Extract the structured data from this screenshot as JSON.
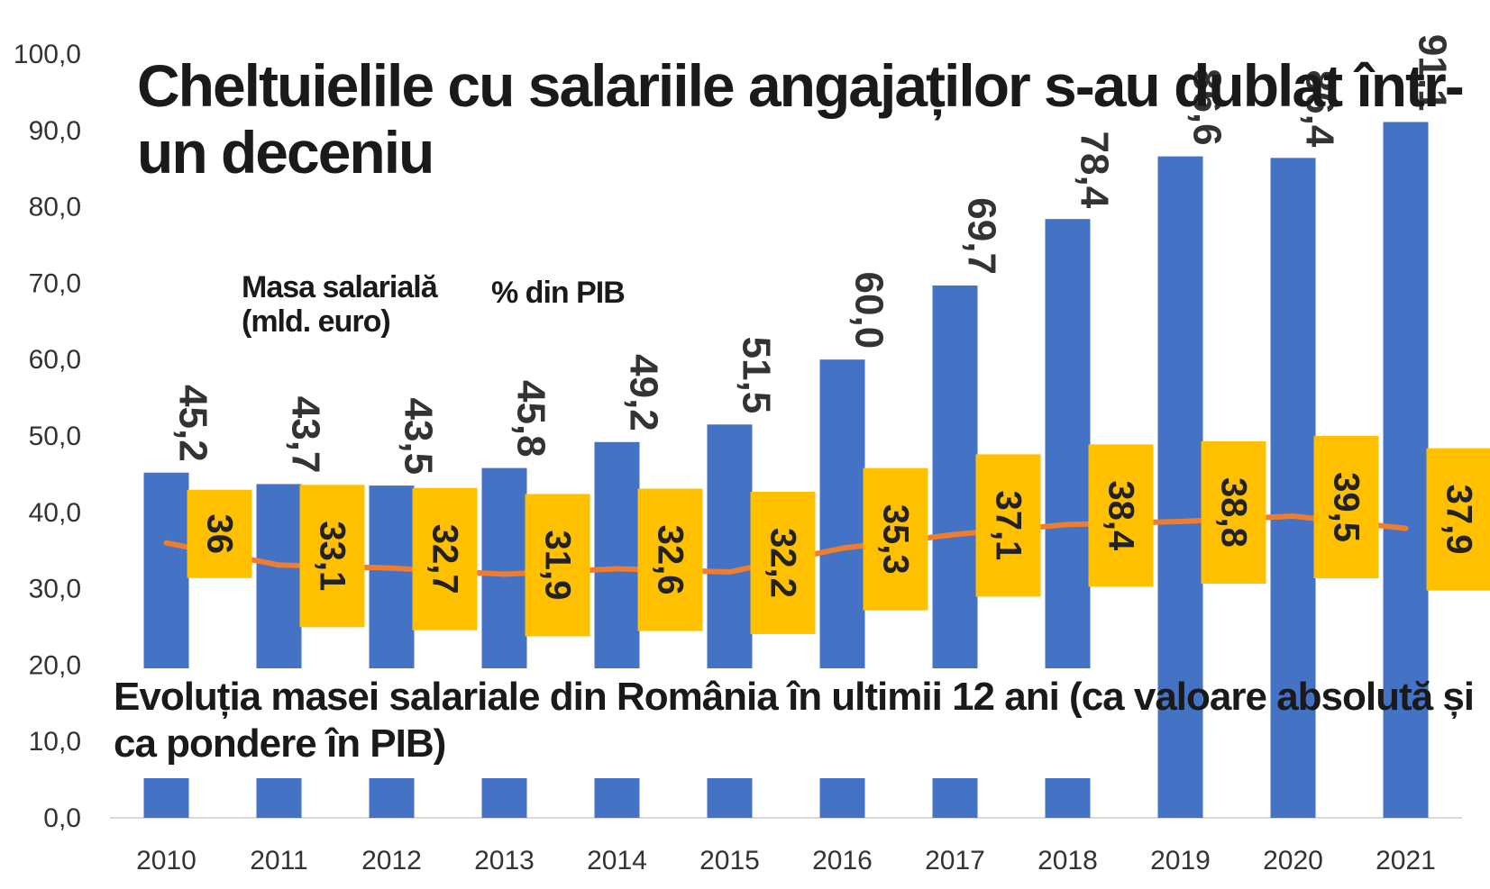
{
  "chart_data": {
    "type": "bar",
    "title": "Cheltuielile cu salariile angajaților s-au dublat într-un deceniu",
    "subtitle": "Evoluția masei salariale din România în ultimii 12 ani (ca valoare absolută și ca pondere în PIB)",
    "categories": [
      "2010",
      "2011",
      "2012",
      "2013",
      "2014",
      "2015",
      "2016",
      "2017",
      "2018",
      "2019",
      "2020",
      "2021"
    ],
    "ylim": [
      0,
      100
    ],
    "yticks": [
      "0,0",
      "10,0",
      "20,0",
      "30,0",
      "40,0",
      "50,0",
      "60,0",
      "70,0",
      "80,0",
      "90,0",
      "100,0"
    ],
    "grid": false,
    "series": [
      {
        "name": "Masa salarială (mld. euro)",
        "type": "bar",
        "color": "#4472c4",
        "values": [
          45.2,
          43.7,
          43.5,
          45.8,
          49.2,
          51.5,
          60.0,
          69.7,
          78.4,
          86.6,
          86.4,
          91.1
        ],
        "labels": [
          "45,2",
          "43,7",
          "43,5",
          "45,8",
          "49,2",
          "51,5",
          "60,0",
          "69,7",
          "78,4",
          "86,6",
          "86,4",
          "91,1"
        ]
      },
      {
        "name": "% din PIB",
        "type": "line",
        "color": "#ed7d31",
        "label_background": "#ffc000",
        "values": [
          36,
          33.1,
          32.7,
          31.9,
          32.6,
          32.2,
          35.3,
          37.1,
          38.4,
          38.8,
          39.5,
          37.9
        ],
        "labels": [
          "36",
          "33,1",
          "32,7",
          "31,9",
          "32,6",
          "32,2",
          "35,3",
          "37,1",
          "38,4",
          "38,8",
          "39,5",
          "37,9"
        ]
      }
    ]
  },
  "legend": {
    "bar_line1": "Masa salarială",
    "bar_line2": "(mld. euro)",
    "line": "% din PIB"
  }
}
